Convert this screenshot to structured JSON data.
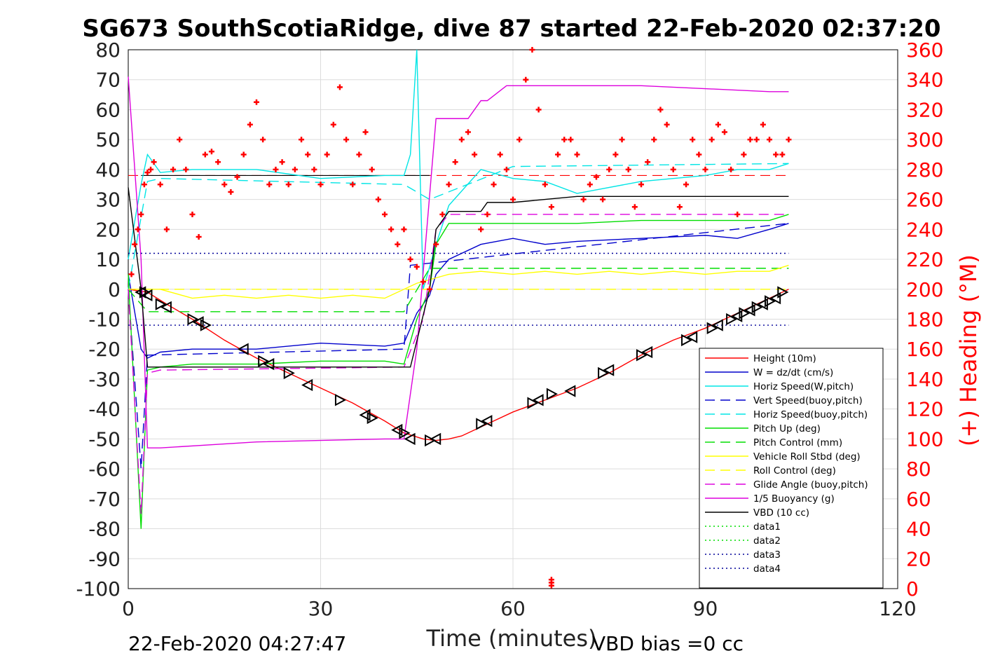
{
  "chart_data": {
    "type": "line",
    "title": "SG673 SouthScotiaRidge, dive 87 started 22-Feb-2020 02:37:20",
    "xlabel": "Time (minutes)",
    "ylabel": "",
    "y2label": "(+) Heading (°M)",
    "xlim": [
      0,
      120
    ],
    "ylim": [
      -100,
      80
    ],
    "y2lim": [
      0,
      360
    ],
    "xticks": [
      0,
      30,
      60,
      90,
      120
    ],
    "yticks": [
      80,
      70,
      60,
      50,
      40,
      30,
      20,
      10,
      0,
      -10,
      -20,
      -30,
      -40,
      -50,
      -60,
      -70,
      -80,
      -90,
      -100
    ],
    "y2ticks": [
      360,
      340,
      320,
      300,
      280,
      260,
      240,
      220,
      200,
      180,
      160,
      140,
      120,
      100,
      80,
      60,
      40,
      20,
      0
    ],
    "grid": true,
    "legend_position": "lower-right",
    "footer_left": "22-Feb-2020 04:27:47",
    "footer_right": "VBD bias =0 cc",
    "colors": {
      "height": "#ff0000",
      "w": "#0000cc",
      "horiz_speed": "#00e5e5",
      "vert_speed_buoy": "#0000cc",
      "horiz_speed_buoy": "#00e5e5",
      "pitch_up": "#00dd00",
      "pitch_control": "#00dd00",
      "roll": "#ffff00",
      "roll_control": "#ffff00",
      "glide_angle": "#dd00dd",
      "buoyancy": "#dd00dd",
      "vbd": "#000000",
      "heading": "#ff0000",
      "data3": "#000099"
    },
    "series": [
      {
        "name": "Height (10m)",
        "style": "solid",
        "color_key": "height",
        "x": [
          0,
          3,
          6,
          10,
          15,
          20,
          25,
          30,
          35,
          40,
          43,
          46,
          48,
          50,
          52,
          56,
          60,
          65,
          70,
          75,
          80,
          85,
          90,
          95,
          100,
          103
        ],
        "y": [
          0,
          -1,
          -5,
          -10,
          -17,
          -23,
          -28,
          -33,
          -38,
          -44,
          -48,
          -50,
          -50.5,
          -50,
          -49,
          -45,
          -41,
          -37,
          -33,
          -28,
          -22,
          -17,
          -13,
          -8,
          -3,
          0
        ]
      },
      {
        "name": "W = dz/dt (cm/s)",
        "style": "solid",
        "color_key": "w",
        "x": [
          0,
          2,
          3,
          5,
          10,
          20,
          30,
          40,
          43,
          45,
          47,
          48,
          50,
          55,
          60,
          65,
          70,
          80,
          90,
          95,
          100,
          103
        ],
        "y": [
          5,
          -20,
          -23,
          -21,
          -20,
          -20,
          -18,
          -19,
          -18,
          -8,
          -2,
          5,
          10,
          15,
          17,
          15,
          16,
          17,
          18,
          17,
          20,
          22
        ]
      },
      {
        "name": "Horiz Speed(W,pitch)",
        "style": "solid",
        "color_key": "horiz_speed",
        "x": [
          0,
          2,
          3,
          5,
          10,
          20,
          30,
          40,
          43,
          44,
          45,
          46,
          48,
          50,
          55,
          60,
          65,
          70,
          80,
          90,
          95,
          100,
          103
        ],
        "y": [
          10,
          35,
          45,
          39,
          40,
          40,
          37,
          38,
          38,
          45,
          80,
          0,
          15,
          28,
          40,
          37,
          36,
          32,
          36,
          38,
          40,
          40,
          42
        ]
      },
      {
        "name": "Vert Speed(buoy,pitch)",
        "style": "dashed",
        "color_key": "vert_speed_buoy",
        "x": [
          0,
          2,
          3,
          43,
          44,
          103
        ],
        "y": [
          0,
          -60,
          -22,
          -20,
          8,
          22
        ]
      },
      {
        "name": "Horiz Speed(buoy,pitch)",
        "style": "dashed",
        "color_key": "horiz_speed_buoy",
        "x": [
          0,
          3,
          5,
          43,
          47,
          60,
          103
        ],
        "y": [
          0,
          36,
          37,
          35,
          30,
          41,
          42
        ]
      },
      {
        "name": "Pitch Up (deg)",
        "style": "solid",
        "color_key": "pitch_up",
        "x": [
          0,
          2,
          3,
          5,
          10,
          20,
          30,
          40,
          43,
          45,
          47,
          48,
          50,
          60,
          70,
          80,
          90,
          100,
          103
        ],
        "y": [
          5,
          -80,
          -27,
          -26,
          -25,
          -25,
          -24,
          -24,
          -25,
          -10,
          0,
          15,
          22,
          22,
          22,
          23,
          23,
          23,
          25
        ]
      },
      {
        "name": "Pitch Control (mm)",
        "style": "dashed",
        "color_key": "pitch_control",
        "x": [
          0,
          3,
          43,
          47,
          103
        ],
        "y": [
          0,
          -7.5,
          -7.5,
          7,
          7
        ]
      },
      {
        "name": "Vehicle Roll Stbd (deg)",
        "style": "solid",
        "color_key": "roll",
        "x": [
          0,
          5,
          10,
          15,
          20,
          25,
          30,
          35,
          40,
          45,
          50,
          55,
          60,
          65,
          70,
          75,
          80,
          85,
          90,
          95,
          100,
          103
        ],
        "y": [
          0,
          0,
          -3,
          -2,
          -3,
          -2,
          -3,
          -2,
          -3,
          2,
          5,
          6,
          5,
          6,
          5,
          6,
          5,
          6,
          5,
          6,
          6,
          8
        ]
      },
      {
        "name": "Roll Control (deg)",
        "style": "dashed",
        "color_key": "roll_control",
        "x": [
          0,
          3,
          43,
          47,
          103
        ],
        "y": [
          0,
          0,
          0,
          0,
          0
        ]
      },
      {
        "name": "Glide Angle (buoy,pitch)",
        "style": "dashed",
        "color_key": "glide_angle",
        "x": [
          0,
          2,
          3,
          5,
          43,
          46,
          48,
          50,
          103
        ],
        "y": [
          0,
          -75,
          -28,
          -27,
          -26,
          -10,
          20,
          25,
          25
        ]
      },
      {
        "name": "1/5 Buoyancy (g)",
        "style": "solid",
        "color_key": "buoyancy",
        "x": [
          0,
          2,
          3,
          5,
          20,
          40,
          43,
          45,
          48,
          53,
          55,
          56,
          59,
          60,
          70,
          80,
          90,
          100,
          103
        ],
        "y": [
          71,
          10,
          -53,
          -53,
          -51,
          -50,
          -50,
          -20,
          57,
          57,
          63,
          63,
          68,
          68,
          68,
          68,
          67,
          66,
          66
        ]
      },
      {
        "name": "VBD (10 cc)",
        "style": "solid",
        "color_key": "vbd",
        "x": [
          0,
          2,
          3,
          43,
          44,
          47,
          48,
          50,
          55,
          56,
          60,
          65,
          70,
          90,
          100,
          103
        ],
        "y": [
          34,
          0,
          -26,
          -26,
          -26,
          0,
          20,
          26,
          26,
          29,
          29,
          30,
          31,
          31,
          31,
          31
        ]
      },
      {
        "name": "data1",
        "style": "dotted",
        "color_key": "pitch_up",
        "x": [],
        "y": []
      },
      {
        "name": "data2",
        "style": "dotted",
        "color_key": "pitch_up",
        "x": [],
        "y": []
      },
      {
        "name": "data3",
        "style": "dotted",
        "color_key": "data3",
        "x": [
          0,
          103
        ],
        "y": [
          12,
          12
        ]
      },
      {
        "name": "data4",
        "style": "dotted",
        "color_key": "data3",
        "x": [
          0,
          103
        ],
        "y": [
          -12,
          -12
        ]
      }
    ],
    "reference_lines": [
      {
        "style": "dashed",
        "color_key": "height",
        "x": [
          0,
          103
        ],
        "y": [
          38,
          38
        ]
      },
      {
        "style": "solid",
        "color_key": "vbd",
        "x": [
          2,
          47
        ],
        "y": [
          38,
          38
        ]
      }
    ],
    "heading_points": {
      "axis": "right",
      "color_key": "heading",
      "x": [
        0.5,
        1,
        1.5,
        2,
        2.5,
        3,
        3.5,
        4,
        5,
        6,
        7,
        8,
        9,
        10,
        11,
        12,
        13,
        14,
        15,
        16,
        17,
        18,
        19,
        20,
        21,
        22,
        23,
        24,
        25,
        26,
        27,
        28,
        29,
        30,
        31,
        32,
        33,
        34,
        35,
        36,
        37,
        38,
        39,
        40,
        41,
        42,
        43,
        44,
        45,
        46,
        47,
        48,
        49,
        50,
        51,
        52,
        53,
        54,
        55,
        56,
        57,
        58,
        59,
        60,
        61,
        62,
        63,
        64,
        65,
        66,
        67,
        68,
        69,
        70,
        71,
        72,
        73,
        74,
        75,
        76,
        77,
        78,
        79,
        80,
        81,
        82,
        83,
        84,
        85,
        86,
        87,
        88,
        89,
        90,
        91,
        92,
        93,
        94,
        95,
        96,
        97,
        98,
        99,
        100,
        101,
        102,
        103
      ],
      "y": [
        210,
        230,
        240,
        250,
        270,
        278,
        280,
        285,
        270,
        240,
        280,
        300,
        280,
        250,
        235,
        290,
        292,
        285,
        270,
        265,
        275,
        290,
        310,
        325,
        300,
        270,
        280,
        285,
        270,
        280,
        300,
        290,
        280,
        270,
        290,
        310,
        335,
        300,
        270,
        290,
        305,
        280,
        260,
        250,
        240,
        230,
        240,
        220,
        215,
        205,
        200,
        230,
        250,
        270,
        285,
        300,
        305,
        290,
        240,
        250,
        270,
        290,
        280,
        260,
        300,
        340,
        360,
        320,
        270,
        255,
        290,
        300,
        300,
        290,
        260,
        270,
        275,
        260,
        280,
        290,
        300,
        280,
        255,
        270,
        285,
        300,
        320,
        310,
        280,
        255,
        270,
        300,
        290,
        280,
        300,
        310,
        305,
        280,
        250,
        290,
        300,
        300,
        310,
        300,
        290,
        290,
        300
      ]
    },
    "heading_outliers": {
      "x": [
        66,
        66,
        66
      ],
      "y": [
        2,
        4,
        6
      ]
    },
    "markers": {
      "style": "triangle",
      "x": [
        2,
        2.5,
        3,
        5,
        6,
        10,
        11,
        12,
        18,
        21,
        22,
        25,
        28,
        33,
        37,
        38,
        42,
        43,
        44,
        47,
        48,
        55,
        56,
        63,
        64,
        66,
        69,
        74,
        75,
        80,
        81,
        87,
        88,
        91,
        92,
        94,
        95,
        96,
        97,
        98,
        99,
        100,
        101,
        102
      ],
      "y": [
        -1,
        -1,
        -2,
        -5,
        -6,
        -10,
        -11,
        -12,
        -20,
        -24,
        -25,
        -28,
        -32,
        -37,
        -42,
        -43,
        -47,
        -48,
        -50,
        -50.5,
        -50,
        -45,
        -44,
        -38,
        -37,
        -35,
        -34,
        -28,
        -27,
        -22,
        -21,
        -17,
        -16,
        -13,
        -12,
        -10,
        -9,
        -8,
        -7,
        -6,
        -5,
        -4,
        -3,
        -1
      ]
    }
  }
}
